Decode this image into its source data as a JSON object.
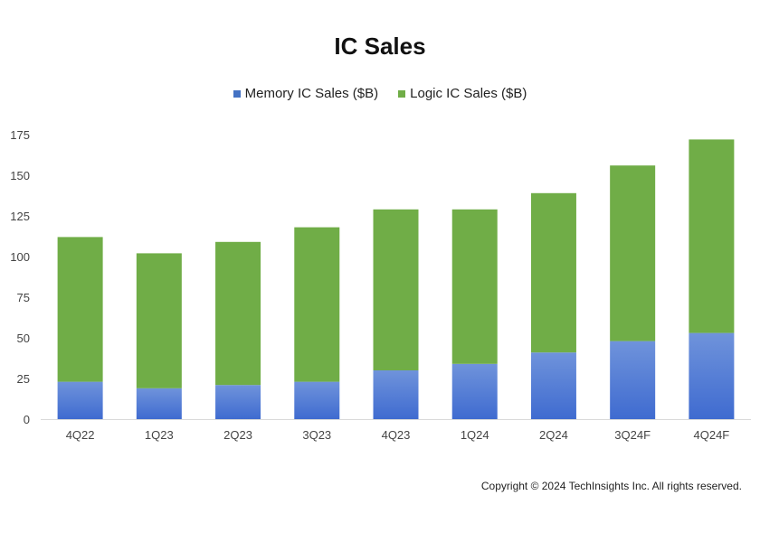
{
  "chart_data": {
    "type": "bar",
    "stacked": true,
    "title": "IC Sales",
    "categories": [
      "4Q22",
      "1Q23",
      "2Q23",
      "3Q23",
      "4Q23",
      "1Q24",
      "2Q24",
      "3Q24F",
      "4Q24F"
    ],
    "series": [
      {
        "name": "Memory IC Sales ($B)",
        "color": "#4472C4",
        "values": [
          23,
          19,
          21,
          23,
          30,
          34,
          41,
          48,
          53
        ]
      },
      {
        "name": "Logic IC Sales ($B)",
        "color": "#70AD47",
        "values": [
          89,
          83,
          88,
          95,
          99,
          95,
          98,
          108,
          119
        ]
      }
    ],
    "yticks": [
      0,
      25,
      50,
      75,
      100,
      125,
      150,
      175
    ],
    "ylim": [
      0,
      175
    ],
    "legend_position": "top-center",
    "grid": false
  },
  "footer": {
    "copyright": "Copyright © 2024 TechInsights Inc.  All rights reserved."
  }
}
